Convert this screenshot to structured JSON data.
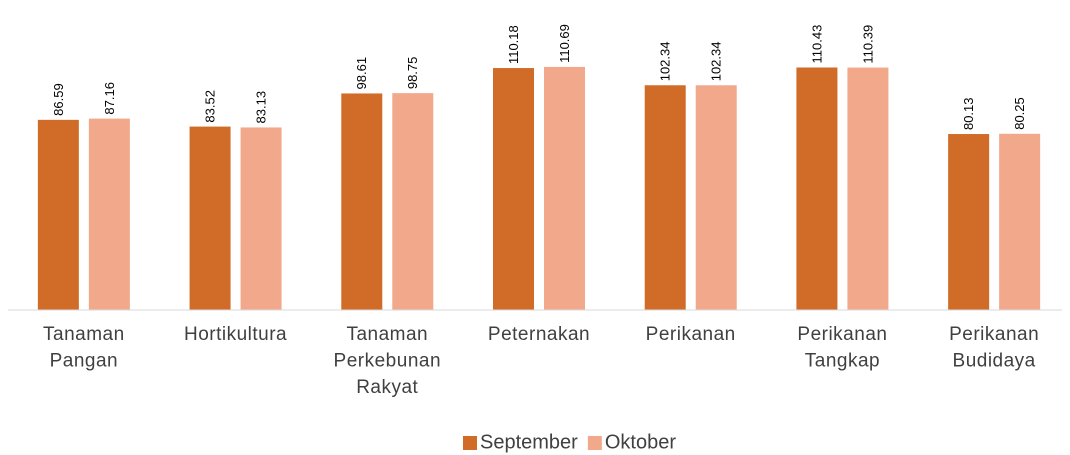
{
  "chart_data": {
    "type": "bar",
    "categories": [
      "Tanaman Pangan",
      "Hortikultura",
      "Tanaman Perkebunan Rakyat",
      "Peternakan",
      "Perikanan",
      "Perikanan Tangkap",
      "Perikanan Budidaya"
    ],
    "series": [
      {
        "name": "September",
        "color": "#d06b28",
        "values": [
          86.59,
          83.52,
          98.61,
          110.18,
          102.34,
          110.43,
          80.13
        ]
      },
      {
        "name": "Oktober",
        "color": "#f2a88a",
        "values": [
          87.16,
          83.13,
          98.75,
          110.69,
          102.34,
          110.39,
          80.25
        ]
      }
    ],
    "ylim": [
      0,
      125
    ],
    "legend": "bottom"
  }
}
